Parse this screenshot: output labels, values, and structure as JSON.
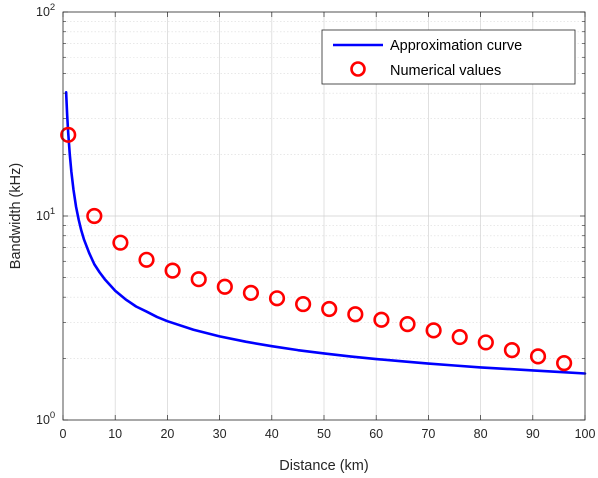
{
  "chart_data": {
    "type": "line",
    "xlabel": "Distance (km)",
    "ylabel": "Bandwidth (kHz)",
    "xlim": [
      0,
      100
    ],
    "ylim": [
      1,
      100
    ],
    "yscale": "log",
    "grid": true,
    "minor_grid": true,
    "legend_position": "top-right",
    "x_ticks": [
      "0",
      "10",
      "20",
      "30",
      "40",
      "50",
      "60",
      "70",
      "80",
      "90",
      "100"
    ],
    "y_ticks": [
      {
        "base": "10",
        "exp": "0"
      },
      {
        "base": "10",
        "exp": "1"
      },
      {
        "base": "10",
        "exp": "2"
      }
    ],
    "series": [
      {
        "name": "Approximation curve",
        "style": "line",
        "color": "#0000ff",
        "x": [
          0.6,
          0.8,
          1,
          1.3,
          1.6,
          2,
          2.5,
          3,
          3.5,
          4,
          5,
          6,
          7,
          8,
          10,
          12,
          14,
          16,
          18,
          20,
          25,
          30,
          35,
          40,
          45,
          50,
          55,
          60,
          65,
          70,
          75,
          80,
          85,
          90,
          95,
          100
        ],
        "y": [
          40.4,
          31.1,
          25.5,
          20.0,
          16.5,
          13.5,
          11.1,
          9.6,
          8.5,
          7.7,
          6.6,
          5.8,
          5.3,
          4.9,
          4.3,
          3.9,
          3.6,
          3.4,
          3.2,
          3.05,
          2.77,
          2.57,
          2.42,
          2.3,
          2.2,
          2.12,
          2.05,
          1.99,
          1.94,
          1.89,
          1.85,
          1.81,
          1.78,
          1.75,
          1.72,
          1.69
        ]
      },
      {
        "name": "Numerical values",
        "style": "marker",
        "color": "#ff0000",
        "x": [
          1,
          6,
          11,
          16,
          21,
          26,
          31,
          36,
          41,
          46,
          51,
          56,
          61,
          66,
          71,
          76,
          81,
          86,
          91,
          96
        ],
        "y": [
          25,
          10,
          7.4,
          6.1,
          5.4,
          4.9,
          4.5,
          4.2,
          3.95,
          3.7,
          3.5,
          3.3,
          3.1,
          2.95,
          2.75,
          2.55,
          2.4,
          2.2,
          2.05,
          1.9
        ]
      }
    ]
  }
}
